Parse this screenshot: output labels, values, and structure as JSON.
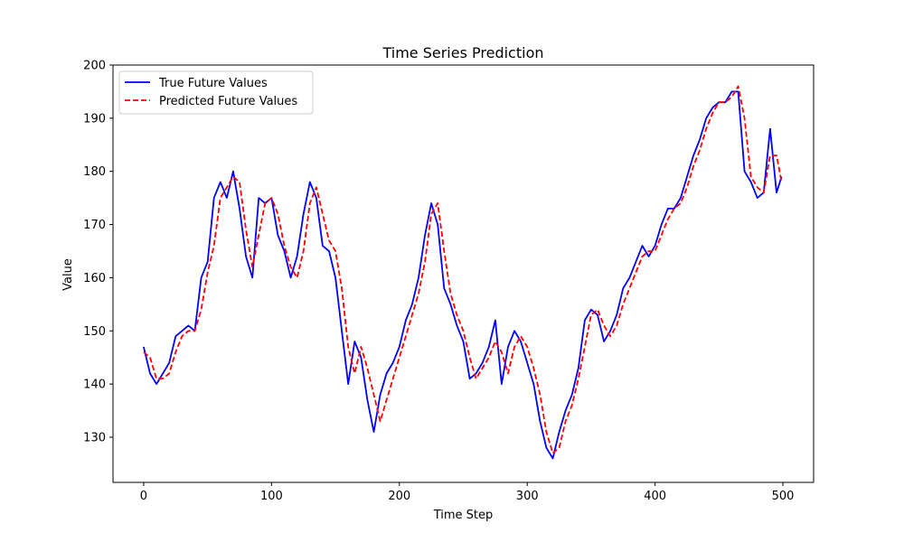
{
  "chart_data": {
    "type": "line",
    "title": "Time Series Prediction",
    "xlabel": "Time Step",
    "ylabel": "Value",
    "xlim": [
      -24,
      524
    ],
    "ylim": [
      121.5,
      200
    ],
    "x_ticks": [
      0,
      100,
      200,
      300,
      400,
      500
    ],
    "y_ticks": [
      130,
      140,
      150,
      160,
      170,
      180,
      190,
      200
    ],
    "grid": false,
    "legend_position": "upper-left",
    "series": [
      {
        "name": "True Future Values",
        "color": "#0000ff",
        "style": "solid",
        "x": [
          0,
          5,
          10,
          15,
          20,
          25,
          30,
          35,
          40,
          45,
          50,
          55,
          60,
          65,
          70,
          75,
          80,
          85,
          90,
          95,
          100,
          105,
          110,
          115,
          120,
          125,
          130,
          135,
          140,
          145,
          150,
          155,
          160,
          165,
          170,
          175,
          180,
          185,
          190,
          195,
          200,
          205,
          210,
          215,
          220,
          225,
          230,
          235,
          240,
          245,
          250,
          255,
          260,
          265,
          270,
          275,
          280,
          285,
          290,
          295,
          300,
          305,
          310,
          315,
          320,
          325,
          330,
          335,
          340,
          345,
          350,
          355,
          360,
          365,
          370,
          375,
          380,
          385,
          390,
          395,
          400,
          405,
          410,
          415,
          420,
          425,
          430,
          435,
          440,
          445,
          450,
          455,
          460,
          465,
          470,
          475,
          480,
          485,
          490,
          495,
          499
        ],
        "y": [
          147,
          142,
          140,
          142,
          144,
          149,
          150,
          151,
          150,
          160,
          163,
          175,
          178,
          175,
          180,
          173,
          164,
          160,
          175,
          174,
          175,
          168,
          165,
          160,
          164,
          172,
          178,
          175,
          166,
          165,
          160,
          150,
          140,
          148,
          145,
          137,
          131,
          138,
          142,
          144,
          147,
          152,
          155,
          160,
          168,
          174,
          170,
          158,
          155,
          151,
          148,
          141,
          142,
          144,
          147,
          152,
          140,
          147,
          150,
          148,
          144,
          140,
          133,
          128,
          126,
          131,
          135,
          138,
          143,
          152,
          154,
          153,
          148,
          150,
          153,
          158,
          160,
          163,
          166,
          164,
          166,
          170,
          173,
          173,
          175,
          179,
          183,
          186,
          190,
          192,
          193,
          193,
          195,
          195,
          180,
          178,
          175,
          176,
          188,
          176,
          179
        ]
      },
      {
        "name": "Predicted Future Values",
        "color": "#ff0000",
        "style": "dashed",
        "x": [
          0,
          5,
          10,
          15,
          20,
          25,
          30,
          35,
          40,
          45,
          50,
          55,
          60,
          65,
          70,
          75,
          80,
          85,
          90,
          95,
          100,
          105,
          110,
          115,
          120,
          125,
          130,
          135,
          140,
          145,
          150,
          155,
          160,
          165,
          170,
          175,
          180,
          185,
          190,
          195,
          200,
          205,
          210,
          215,
          220,
          225,
          230,
          235,
          240,
          245,
          250,
          255,
          260,
          265,
          270,
          275,
          280,
          285,
          290,
          295,
          300,
          305,
          310,
          315,
          320,
          325,
          330,
          335,
          340,
          345,
          350,
          355,
          360,
          365,
          370,
          375,
          380,
          385,
          390,
          395,
          400,
          405,
          410,
          415,
          420,
          425,
          430,
          435,
          440,
          445,
          450,
          455,
          460,
          465,
          470,
          475,
          480,
          485,
          490,
          495,
          499
        ],
        "y": [
          146,
          145,
          141,
          141,
          142,
          146,
          149,
          150,
          150,
          154,
          161,
          166,
          175,
          177,
          179,
          178,
          169,
          162,
          168,
          174,
          175,
          172,
          166,
          162,
          160,
          165,
          174,
          177,
          172,
          167,
          165,
          158,
          147,
          142,
          147,
          143,
          138,
          133,
          137,
          141,
          145,
          149,
          153,
          157,
          163,
          172,
          174,
          165,
          157,
          153,
          150,
          145,
          141,
          143,
          145,
          148,
          146,
          142,
          147,
          149,
          147,
          143,
          138,
          131,
          127,
          128,
          133,
          136,
          141,
          147,
          153,
          154,
          151,
          149,
          151,
          155,
          158,
          161,
          164,
          165,
          165,
          168,
          171,
          173,
          174,
          177,
          181,
          184,
          188,
          191,
          193,
          193,
          194,
          196,
          190,
          179,
          177,
          176,
          183,
          183,
          178
        ]
      }
    ]
  }
}
